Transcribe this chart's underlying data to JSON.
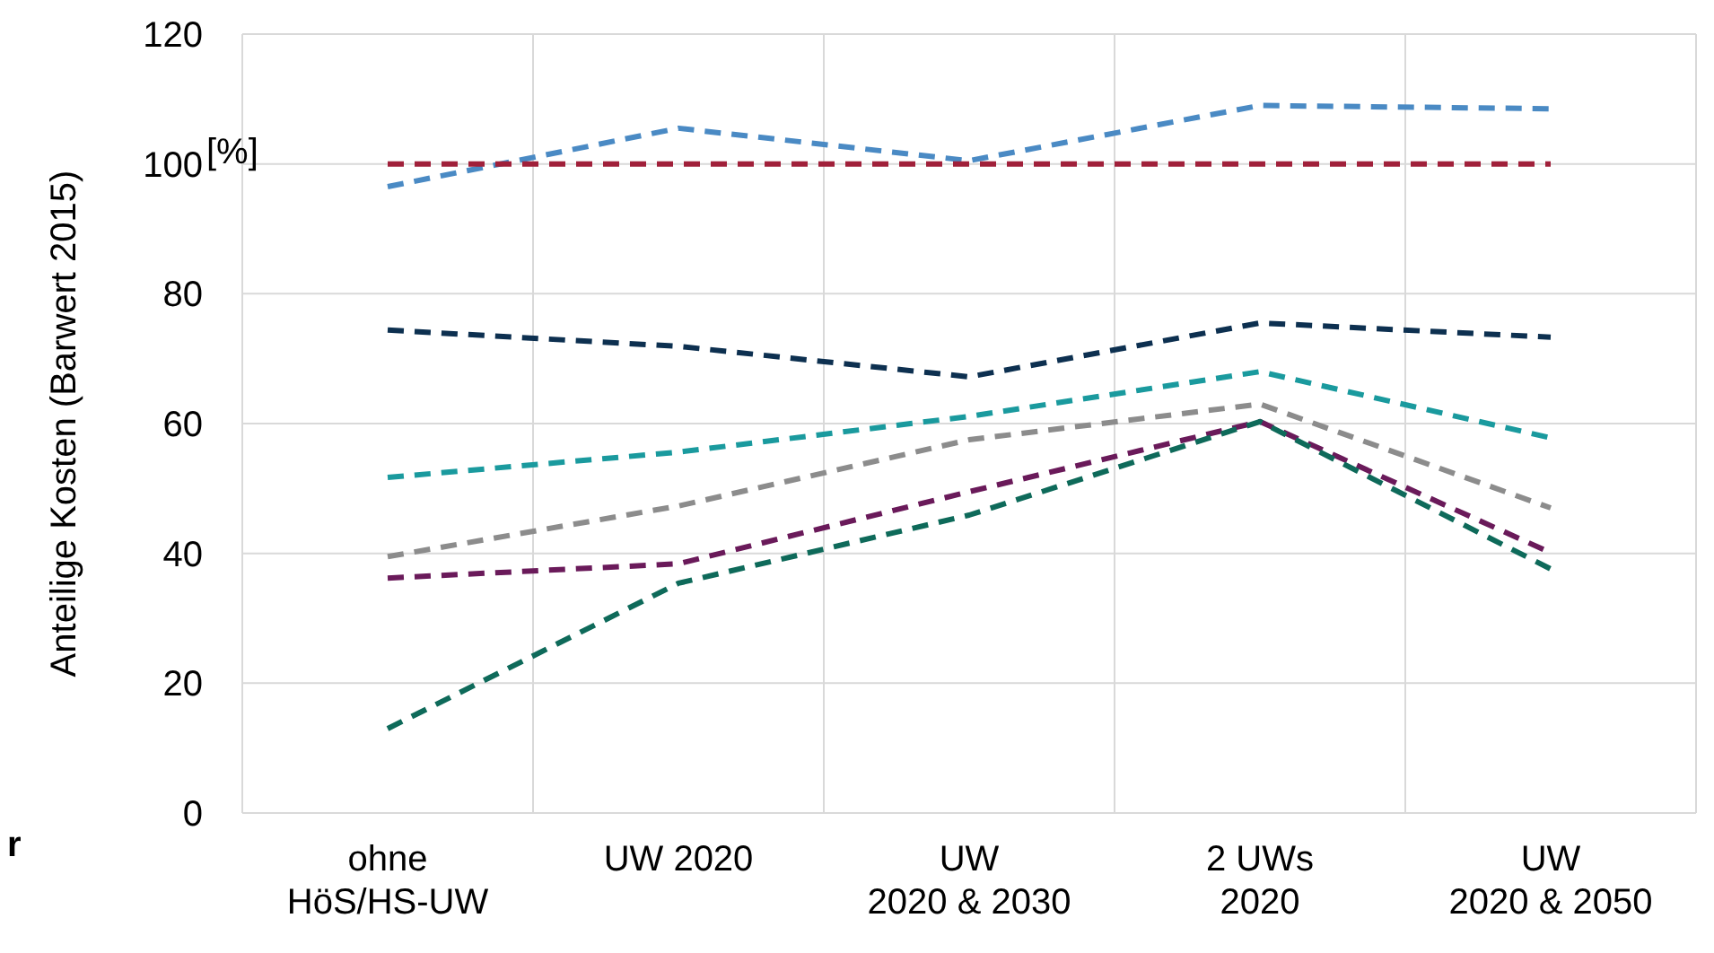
{
  "chart_data": {
    "type": "line",
    "ylabel": "Anteilige Kosten (Barwert 2015)",
    "categories": [
      "ohne\nHöS/HS-UW",
      "UW 2020",
      "UW\n2020 & 2030",
      "2 UWs\n2020",
      "UW\n2020 & 2050"
    ],
    "series": [
      {
        "color": "#4a8ac4",
        "values": [
          96.5,
          105.5,
          100.5,
          109,
          108.5
        ]
      },
      {
        "color": "#a0203a",
        "values": [
          100,
          100,
          100,
          100,
          100
        ]
      },
      {
        "color": "#0d3050",
        "values": [
          74.4,
          71.9,
          67.2,
          75.5,
          73.3
        ]
      },
      {
        "color": "#1a9a9e",
        "values": [
          51.7,
          55.6,
          61.1,
          68,
          57.8
        ]
      },
      {
        "color": "#8c8c8c",
        "values": [
          39.5,
          47.3,
          57.5,
          63,
          47
        ]
      },
      {
        "color": "#6a1a5a",
        "values": [
          36.2,
          38.4,
          49.5,
          60.3,
          40.1
        ]
      },
      {
        "color": "#0e6a5a",
        "values": [
          13,
          35.4,
          45.9,
          60.3,
          37.6
        ]
      }
    ],
    "ylim": [
      0,
      120
    ],
    "yticks": [
      0,
      20,
      40,
      60,
      80,
      100,
      120
    ],
    "grid": true,
    "line_style": "dashed",
    "marker": "none",
    "annotations": [
      "[%]",
      "r"
    ]
  }
}
